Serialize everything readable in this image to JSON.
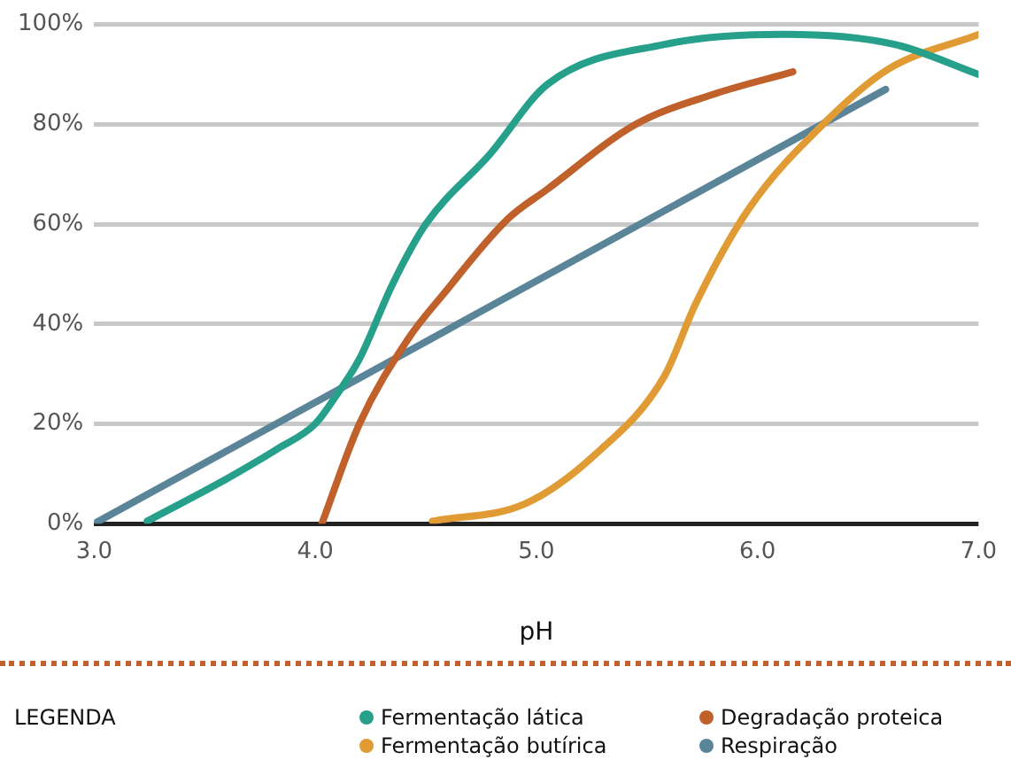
{
  "chart_data": {
    "type": "line",
    "xlabel": "pH",
    "legend_title": "LEGENDA",
    "legend": "bottom",
    "grid": "y",
    "marker": "none",
    "line_style": "solid",
    "xlim": [
      3,
      7
    ],
    "xticks": [
      {
        "value": 3,
        "label": "3.0"
      },
      {
        "value": 4,
        "label": "4.0"
      },
      {
        "value": 5,
        "label": "5.0"
      },
      {
        "value": 6,
        "label": "6.0"
      },
      {
        "value": 7,
        "label": "7.0"
      }
    ],
    "ylim": [
      0,
      100
    ],
    "yticks": [
      {
        "value": 0,
        "label": "0%"
      },
      {
        "value": 20,
        "label": "20%"
      },
      {
        "value": 40,
        "label": "40%"
      },
      {
        "value": 60,
        "label": "60%"
      },
      {
        "value": 80,
        "label": "80%"
      },
      {
        "value": 100,
        "label": "100%"
      }
    ],
    "series": [
      {
        "name": "Fermentação lática",
        "color": "#26a08a",
        "x": [
          3.24,
          3.6,
          3.83,
          4.0,
          4.1,
          4.2,
          4.35,
          4.5,
          4.79,
          5.05,
          5.58,
          6.12,
          6.62,
          7.0
        ],
        "values": [
          0.5,
          9,
          15,
          20,
          26,
          33,
          48,
          60,
          74,
          88,
          96,
          98,
          96,
          90
        ]
      },
      {
        "name": "Degradação proteica",
        "color": "#c0612b",
        "x": [
          4.03,
          4.2,
          4.42,
          4.58,
          4.87,
          5.05,
          5.45,
          5.8,
          6.16
        ],
        "values": [
          0,
          20,
          37,
          46,
          61,
          67,
          80,
          86,
          90.5
        ]
      },
      {
        "name": "Fermentação butírica",
        "color": "#e09b35",
        "x": [
          4.53,
          4.95,
          5.27,
          5.58,
          5.72,
          5.96,
          6.32,
          6.59,
          7.0
        ],
        "values": [
          0.5,
          4,
          14,
          29.6,
          44,
          63,
          81,
          91,
          98
        ]
      },
      {
        "name": "Respiração",
        "color": "#5a8599",
        "x": [
          3.0,
          6.58
        ],
        "values": [
          0,
          87
        ]
      }
    ]
  }
}
